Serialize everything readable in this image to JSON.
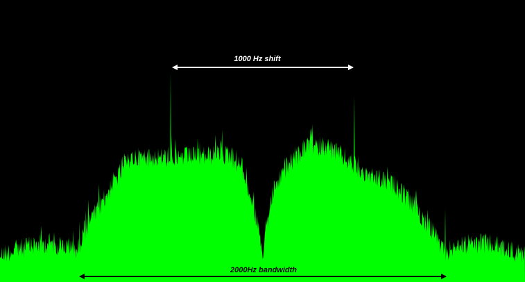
{
  "annotations": {
    "shift": "1000 Hz shift",
    "bandwidth": "2000Hz bandwidth"
  }
}
